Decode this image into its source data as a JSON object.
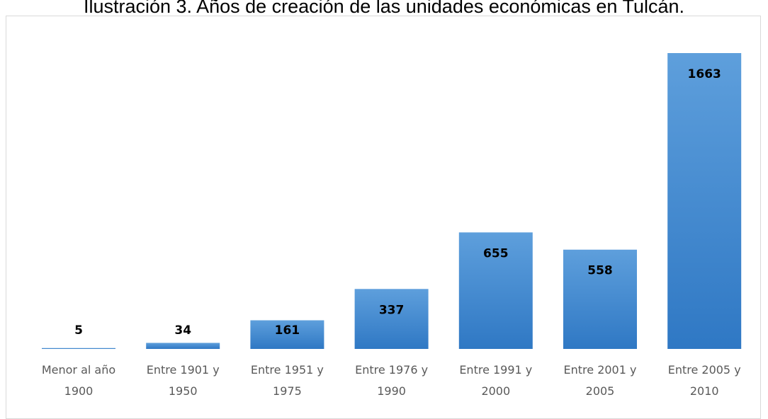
{
  "chart_data": {
    "type": "bar",
    "title": "Ilustración 3. Años de creación de las unidades económicas en Tulcán.",
    "categories": [
      "Menor al año 1900",
      "Entre 1901 y 1950",
      "Entre 1951 y 1975",
      "Entre 1976 y 1990",
      "Entre 1991 y 2000",
      "Entre 2001 y 2005",
      "Entre 2005 y 2010"
    ],
    "values": [
      5,
      34,
      161,
      337,
      655,
      558,
      1663
    ],
    "color": "#4a8fd4"
  }
}
